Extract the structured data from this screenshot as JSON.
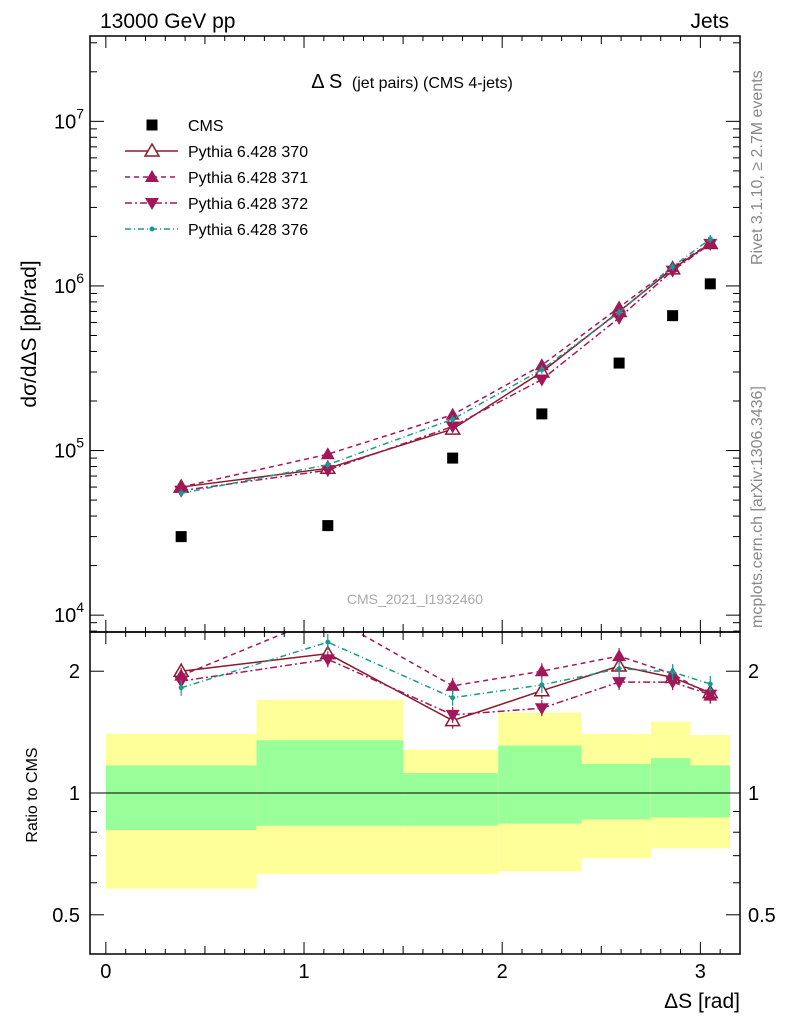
{
  "header": {
    "left": "13000 GeV pp",
    "right": "Jets"
  },
  "side_labels": {
    "rivet": "Rivet 3.1.10, ≥ 2.7M events",
    "mcplots": "mcplots.cern.ch [arXiv:1306.3436]"
  },
  "watermark": "CMS_2021_I1932460",
  "colors": {
    "cms": "#000000",
    "p370": "#8b1a2b",
    "p371": "#a3175a",
    "p372": "#a3175a",
    "p376": "#1a9a8a",
    "band_green": "#99ff99",
    "band_yellow": "#ffff99"
  },
  "chart_data": [
    {
      "id": "main",
      "type": "scatter",
      "title": "Δ S",
      "title_suffix": "(jet pairs) (CMS 4-jets)",
      "ylabel": "dσ/dΔS [pb/rad]",
      "xlim": [
        -0.08,
        3.2
      ],
      "ylim": [
        7900,
        33000000
      ],
      "yscale": "log",
      "yticks": [
        {
          "value": 10000,
          "label": "10",
          "exp": "4"
        },
        {
          "value": 100000,
          "label": "10",
          "exp": "5"
        },
        {
          "value": 1000000,
          "label": "10",
          "exp": "6"
        },
        {
          "value": 10000000,
          "label": "10",
          "exp": "7"
        }
      ],
      "legend_position": "top-left",
      "series": [
        {
          "key": "cms",
          "name": "CMS",
          "style": "cms",
          "x": [
            0.38,
            1.12,
            1.75,
            2.2,
            2.59,
            2.86,
            3.05
          ],
          "y": [
            30000,
            35000,
            90000,
            167000,
            340000,
            660000,
            1030000
          ]
        },
        {
          "key": "p370",
          "name": "Pythia 6.428 370",
          "style": "p370",
          "x": [
            0.38,
            1.12,
            1.75,
            2.2,
            2.59,
            2.86,
            3.05
          ],
          "y": [
            60000,
            78000,
            135000,
            300000,
            700000,
            1270000,
            1810000
          ]
        },
        {
          "key": "p371",
          "name": "Pythia 6.428 371",
          "style": "p371",
          "x": [
            0.38,
            1.12,
            1.75,
            2.2,
            2.59,
            2.86,
            3.05
          ],
          "y": [
            60000,
            95000,
            165000,
            330000,
            740000,
            1300000,
            1820000
          ]
        },
        {
          "key": "p372",
          "name": "Pythia 6.428 372",
          "style": "p372",
          "x": [
            0.38,
            1.12,
            1.75,
            2.2,
            2.59,
            2.86,
            3.05
          ],
          "y": [
            57000,
            76000,
            140000,
            270000,
            640000,
            1240000,
            1800000
          ]
        },
        {
          "key": "p376",
          "name": "Pythia 6.428 376",
          "style": "p376",
          "x": [
            0.38,
            1.12,
            1.75,
            2.2,
            2.59,
            2.86,
            3.05
          ],
          "y": [
            55000,
            82000,
            155000,
            310000,
            690000,
            1310000,
            1930000
          ]
        }
      ]
    },
    {
      "id": "ratio",
      "type": "line",
      "ylabel": "Ratio to CMS",
      "xlabel": "ΔS [rad]",
      "xlim": [
        -0.08,
        3.2
      ],
      "ylim": [
        0.4,
        2.5
      ],
      "yscale": "log",
      "yticks": [
        {
          "value": 0.5,
          "label": "0.5"
        },
        {
          "value": 1,
          "label": "1"
        },
        {
          "value": 2,
          "label": "2"
        }
      ],
      "xticks": [
        {
          "value": 0,
          "label": "0"
        },
        {
          "value": 1,
          "label": "1"
        },
        {
          "value": 2,
          "label": "2"
        },
        {
          "value": 3,
          "label": "3"
        }
      ],
      "bands": [
        {
          "x0": 0.0,
          "x1": 0.76,
          "green": [
            0.81,
            1.17
          ],
          "yellow": [
            0.58,
            1.4
          ]
        },
        {
          "x0": 0.76,
          "x1": 1.5,
          "green": [
            0.83,
            1.35
          ],
          "yellow": [
            0.63,
            1.7
          ]
        },
        {
          "x0": 1.5,
          "x1": 1.98,
          "green": [
            0.83,
            1.12
          ],
          "yellow": [
            0.63,
            1.28
          ]
        },
        {
          "x0": 1.98,
          "x1": 2.4,
          "green": [
            0.84,
            1.31
          ],
          "yellow": [
            0.64,
            1.58
          ]
        },
        {
          "x0": 2.4,
          "x1": 2.75,
          "green": [
            0.86,
            1.18
          ],
          "yellow": [
            0.69,
            1.4
          ]
        },
        {
          "x0": 2.75,
          "x1": 2.95,
          "green": [
            0.87,
            1.22
          ],
          "yellow": [
            0.73,
            1.5
          ]
        },
        {
          "x0": 2.95,
          "x1": 3.15,
          "green": [
            0.87,
            1.17
          ],
          "yellow": [
            0.73,
            1.39
          ]
        }
      ],
      "series": [
        {
          "key": "p370",
          "style": "p370",
          "x": [
            0.38,
            1.12,
            1.75,
            2.2,
            2.59,
            2.86,
            3.05
          ],
          "y": [
            2.0,
            2.21,
            1.51,
            1.79,
            2.06,
            1.93,
            1.77
          ]
        },
        {
          "key": "p371",
          "style": "p371",
          "x": [
            0.38,
            1.12,
            1.75,
            2.2,
            2.59,
            2.86,
            3.05
          ],
          "y": [
            1.95,
            2.75,
            1.84,
            2.0,
            2.18,
            1.97,
            1.74
          ]
        },
        {
          "key": "p372",
          "style": "p372",
          "x": [
            0.38,
            1.12,
            1.75,
            2.2,
            2.59,
            2.86,
            3.05
          ],
          "y": [
            1.89,
            2.14,
            1.56,
            1.62,
            1.88,
            1.88,
            1.75
          ]
        },
        {
          "key": "p376",
          "style": "p376",
          "x": [
            0.38,
            1.12,
            1.75,
            2.2,
            2.59,
            2.86,
            3.05
          ],
          "y": [
            1.82,
            2.36,
            1.72,
            1.85,
            2.03,
            1.99,
            1.86
          ]
        }
      ]
    }
  ]
}
